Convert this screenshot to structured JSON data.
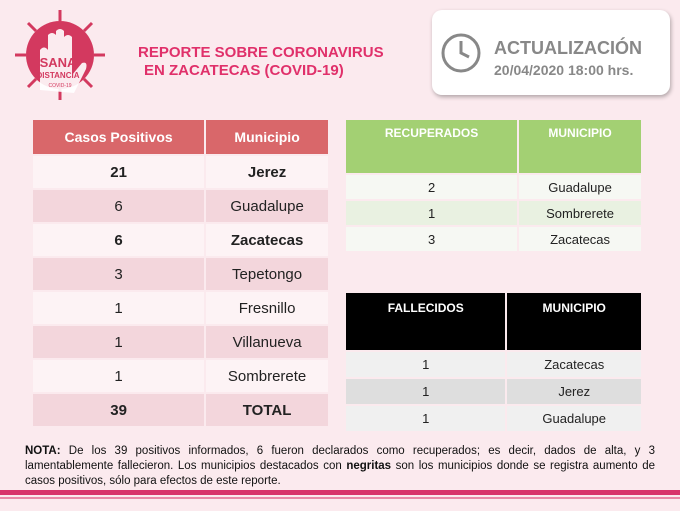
{
  "logo": {
    "line1": "SANA",
    "line2": "DISTANCIA",
    "line3": "COVID-19"
  },
  "header": {
    "title": [
      "REPORTE SOBRE CORONAVIRUS",
      "EN ZACATECAS  (COVID-19)"
    ]
  },
  "update": {
    "label": "ACTUALIZACIÓN",
    "datetime": "20/04/2020 18:00 hrs."
  },
  "positives": {
    "headers": [
      "Casos Positivos",
      "Municipio"
    ],
    "rows": [
      [
        21,
        "Jerez"
      ],
      [
        6,
        "Guadalupe"
      ],
      [
        6,
        "Zacatecas"
      ],
      [
        3,
        "Tepetongo"
      ],
      [
        1,
        "Fresnillo"
      ],
      [
        1,
        "Villanueva"
      ],
      [
        1,
        "Sombrerete"
      ],
      [
        39,
        "TOTAL"
      ]
    ]
  },
  "recovered": {
    "headers": [
      "RECUPERADOS",
      "MUNICIPIO"
    ],
    "rows": [
      [
        2,
        "Guadalupe"
      ],
      [
        1,
        "Sombrerete"
      ],
      [
        3,
        "Zacatecas"
      ]
    ]
  },
  "deceased": {
    "headers": [
      "FALLECIDOS",
      "MUNICIPIO"
    ],
    "rows": [
      [
        1,
        "Zacatecas"
      ],
      [
        1,
        "Jerez"
      ],
      [
        1,
        "Guadalupe"
      ]
    ]
  },
  "note": {
    "label": "NOTA:",
    "text1": "De los 39 positivos informados, 6 fueron declarados como recuperados; es decir, dados de alta, y 3 lamentablemente fallecieron. Los municipios destacados con",
    "bold": "negritas",
    "text2": "son los municipios donde se registra aumento de casos positivos, sólo para efectos de este reporte."
  }
}
